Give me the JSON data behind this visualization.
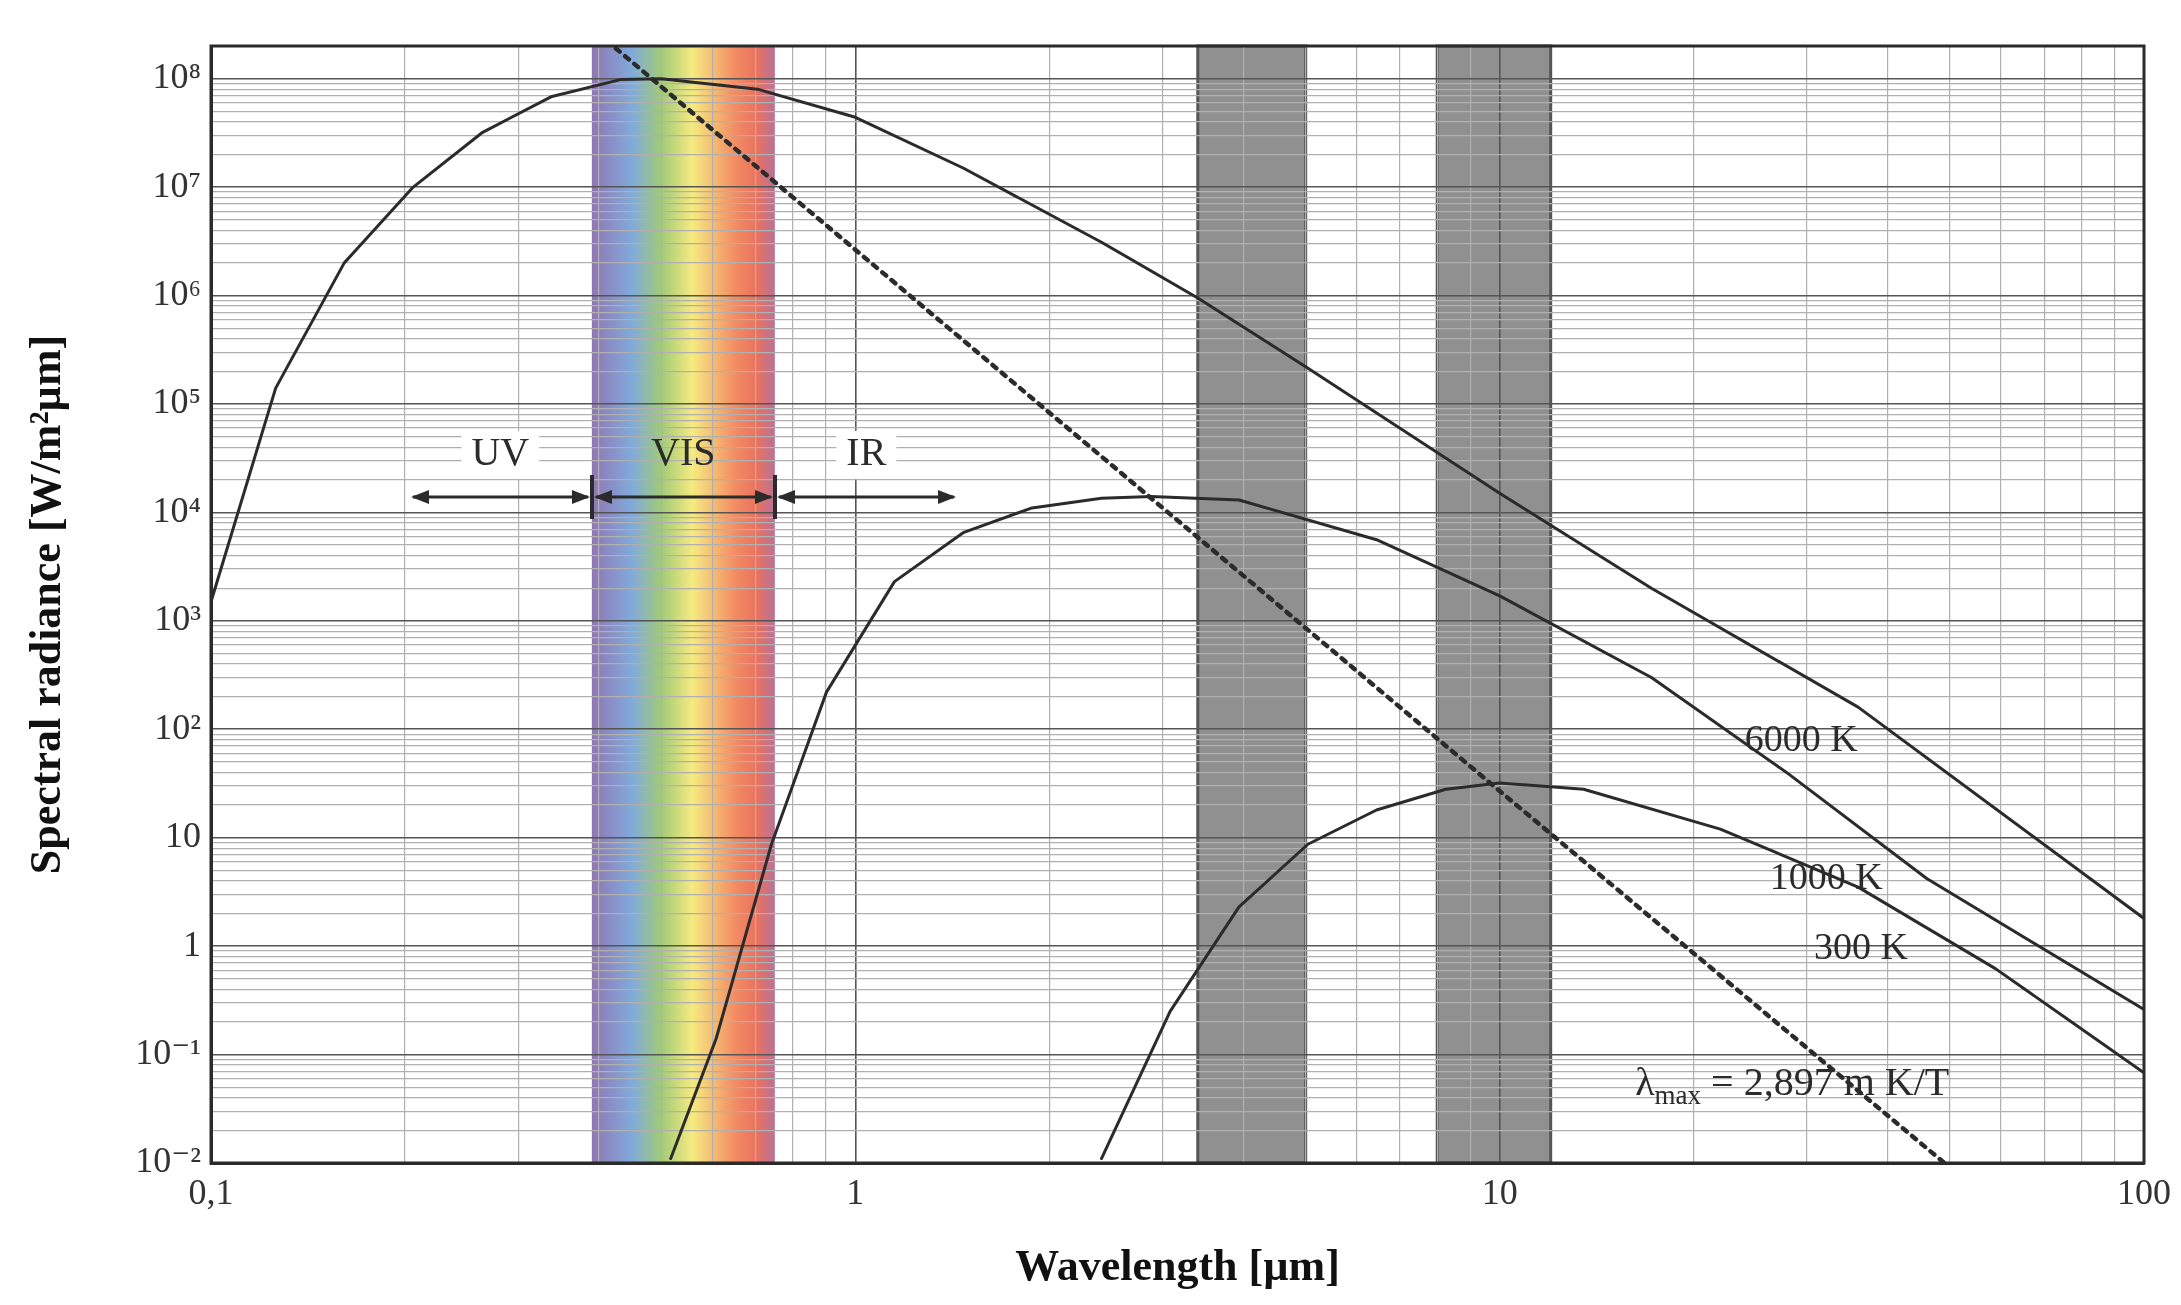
{
  "chart_data": {
    "type": "line",
    "xlabel": "Wavelength [µm]",
    "ylabel": "Spectral radiance [W/m²µm]",
    "log": "xy",
    "grid": true,
    "marker": "none",
    "xlim": [
      0.1,
      100
    ],
    "ylim": [
      0.01,
      200000000.0
    ],
    "xticks": [
      {
        "value": 0.1,
        "label": "0,1"
      },
      {
        "value": 0.2,
        "label": null
      },
      {
        "value": 0.3,
        "label": null
      },
      {
        "value": 0.4,
        "label": null
      },
      {
        "value": 0.5,
        "label": null
      },
      {
        "value": 0.6,
        "label": null
      },
      {
        "value": 0.7,
        "label": null
      },
      {
        "value": 0.8,
        "label": null
      },
      {
        "value": 0.9,
        "label": null
      },
      1,
      {
        "value": 2,
        "label": null
      },
      {
        "value": 3,
        "label": null
      },
      {
        "value": 4,
        "label": null
      },
      {
        "value": 5,
        "label": null
      },
      {
        "value": 6,
        "label": null
      },
      {
        "value": 7,
        "label": null
      },
      {
        "value": 8,
        "label": null
      },
      {
        "value": 9,
        "label": null
      },
      10,
      {
        "value": 20,
        "label": null
      },
      {
        "value": 30,
        "label": null
      },
      {
        "value": 40,
        "label": null
      },
      {
        "value": 50,
        "label": null
      },
      {
        "value": 60,
        "label": null
      },
      {
        "value": 70,
        "label": null
      },
      {
        "value": 80,
        "label": null
      },
      {
        "value": 90,
        "label": null
      },
      100
    ],
    "yticks": [
      {
        "value": 0.01,
        "label": "10⁻²"
      },
      {
        "value": 0.02,
        "label": null
      },
      {
        "value": 0.03,
        "label": null
      },
      {
        "value": 0.04,
        "label": null
      },
      {
        "value": 0.05,
        "label": null
      },
      {
        "value": 0.06,
        "label": null
      },
      {
        "value": 0.07,
        "label": null
      },
      {
        "value": 0.08,
        "label": null
      },
      {
        "value": 0.09,
        "label": null
      },
      {
        "value": 0.1,
        "label": "10⁻¹"
      },
      {
        "value": 0.2,
        "label": null
      },
      {
        "value": 0.3,
        "label": null
      },
      {
        "value": 0.4,
        "label": null
      },
      {
        "value": 0.5,
        "label": null
      },
      {
        "value": 0.6,
        "label": null
      },
      {
        "value": 0.7,
        "label": null
      },
      {
        "value": 0.8,
        "label": null
      },
      {
        "value": 0.9,
        "label": null
      },
      1,
      {
        "value": 2,
        "label": null
      },
      {
        "value": 3,
        "label": null
      },
      {
        "value": 4,
        "label": null
      },
      {
        "value": 5,
        "label": null
      },
      {
        "value": 6,
        "label": null
      },
      {
        "value": 7,
        "label": null
      },
      {
        "value": 8,
        "label": null
      },
      {
        "value": 9,
        "label": null
      },
      10,
      {
        "value": 20,
        "label": null
      },
      {
        "value": 30,
        "label": null
      },
      {
        "value": 40,
        "label": null
      },
      {
        "value": 50,
        "label": null
      },
      {
        "value": 60,
        "label": null
      },
      {
        "value": 70,
        "label": null
      },
      {
        "value": 80,
        "label": null
      },
      {
        "value": 90,
        "label": null
      },
      {
        "value": 100,
        "label": "10²"
      },
      {
        "value": 200,
        "label": null
      },
      {
        "value": 300,
        "label": null
      },
      {
        "value": 400,
        "label": null
      },
      {
        "value": 500,
        "label": null
      },
      {
        "value": 600,
        "label": null
      },
      {
        "value": 700,
        "label": null
      },
      {
        "value": 800,
        "label": null
      },
      {
        "value": 900,
        "label": null
      },
      {
        "value": 1000,
        "label": "10³"
      },
      {
        "value": 2000,
        "label": null
      },
      {
        "value": 3000,
        "label": null
      },
      {
        "value": 4000,
        "label": null
      },
      {
        "value": 5000,
        "label": null
      },
      {
        "value": 6000,
        "label": null
      },
      {
        "value": 7000,
        "label": null
      },
      {
        "value": 8000,
        "label": null
      },
      {
        "value": 9000,
        "label": null
      },
      {
        "value": 10000,
        "label": "10⁴"
      },
      {
        "value": 20000,
        "label": null
      },
      {
        "value": 30000,
        "label": null
      },
      {
        "value": 40000,
        "label": null
      },
      {
        "value": 50000,
        "label": null
      },
      {
        "value": 60000,
        "label": null
      },
      {
        "value": 70000,
        "label": null
      },
      {
        "value": 80000,
        "label": null
      },
      {
        "value": 90000,
        "label": null
      },
      {
        "value": 100000,
        "label": "10⁵"
      },
      {
        "value": 200000,
        "label": null
      },
      {
        "value": 300000,
        "label": null
      },
      {
        "value": 400000,
        "label": null
      },
      {
        "value": 500000,
        "label": null
      },
      {
        "value": 600000,
        "label": null
      },
      {
        "value": 700000,
        "label": null
      },
      {
        "value": 800000,
        "label": null
      },
      {
        "value": 900000,
        "label": null
      },
      {
        "value": 1000000,
        "label": "10⁶"
      },
      {
        "value": 2000000,
        "label": null
      },
      {
        "value": 3000000,
        "label": null
      },
      {
        "value": 4000000,
        "label": null
      },
      {
        "value": 5000000,
        "label": null
      },
      {
        "value": 6000000,
        "label": null
      },
      {
        "value": 7000000,
        "label": null
      },
      {
        "value": 8000000,
        "label": null
      },
      {
        "value": 9000000,
        "label": null
      },
      {
        "value": 10000000,
        "label": "10⁷"
      },
      {
        "value": 20000000,
        "label": null
      },
      {
        "value": 30000000,
        "label": null
      },
      {
        "value": 40000000,
        "label": null
      },
      {
        "value": 50000000,
        "label": null
      },
      {
        "value": 60000000,
        "label": null
      },
      {
        "value": 70000000,
        "label": null
      },
      {
        "value": 80000000,
        "label": null
      },
      {
        "value": 90000000,
        "label": null
      },
      {
        "value": 100000000,
        "label": "10⁸"
      },
      {
        "value": 200000000,
        "label": null
      }
    ],
    "series": [
      {
        "name": "6000 K",
        "color": "#2b2b2b",
        "x": [
          0.1,
          0.126,
          0.161,
          0.206,
          0.264,
          0.337,
          0.432,
          0.5,
          0.705,
          1,
          1.47,
          2.41,
          3.4,
          5,
          10,
          17.2,
          36,
          100
        ],
        "values": [
          1500,
          140000,
          2000000,
          10000000,
          32000000,
          68000000,
          98000000,
          100000000,
          80000000,
          44000000,
          15000000,
          3100000,
          950000,
          220000,
          15000,
          2000,
          160,
          1.8
        ]
      },
      {
        "name": "1000 K",
        "color": "#2b2b2b",
        "x": [
          0.517,
          0.608,
          0.741,
          0.902,
          1.15,
          1.47,
          1.88,
          2.41,
          2.88,
          3.94,
          6.44,
          10,
          17.2,
          28.2,
          46,
          100
        ],
        "values": [
          0.011,
          0.14,
          8.7,
          220,
          2300,
          6500,
          11000,
          13500,
          14000,
          13000,
          5600,
          1700,
          300,
          38,
          4.2,
          0.26
        ]
      },
      {
        "name": "300 K",
        "color": "#2b2b2b",
        "x": [
          2.41,
          3.08,
          3.94,
          5.04,
          6.44,
          8.25,
          10,
          13.5,
          22,
          36,
          58.8,
          100
        ],
        "values": [
          0.011,
          0.25,
          2.3,
          8.7,
          18,
          28,
          32,
          28,
          12,
          3.5,
          0.62,
          0.068
        ]
      },
      {
        "type": "line",
        "line_style": "dotted",
        "color": "#2b2b2b",
        "x": [
          0.425,
          0.483,
          2.9,
          9.66,
          49
        ],
        "values": [
          190000000,
          100000000,
          13000,
          32,
          0.01
        ]
      }
    ],
    "bands": [
      {
        "axis": "x",
        "from": 0.39,
        "to": 0.75,
        "label": "VIS",
        "color": "#f5e97a"
      },
      {
        "axis": "x",
        "from": 3.4,
        "to": 5,
        "color": "#8a8a8a"
      },
      {
        "axis": "x",
        "from": 8,
        "to": 12,
        "color": "#8a8a8a"
      }
    ],
    "annotations": [
      "UV",
      "IR",
      "λ$_{max}$ = 2,897 m K/T"
    ]
  }
}
